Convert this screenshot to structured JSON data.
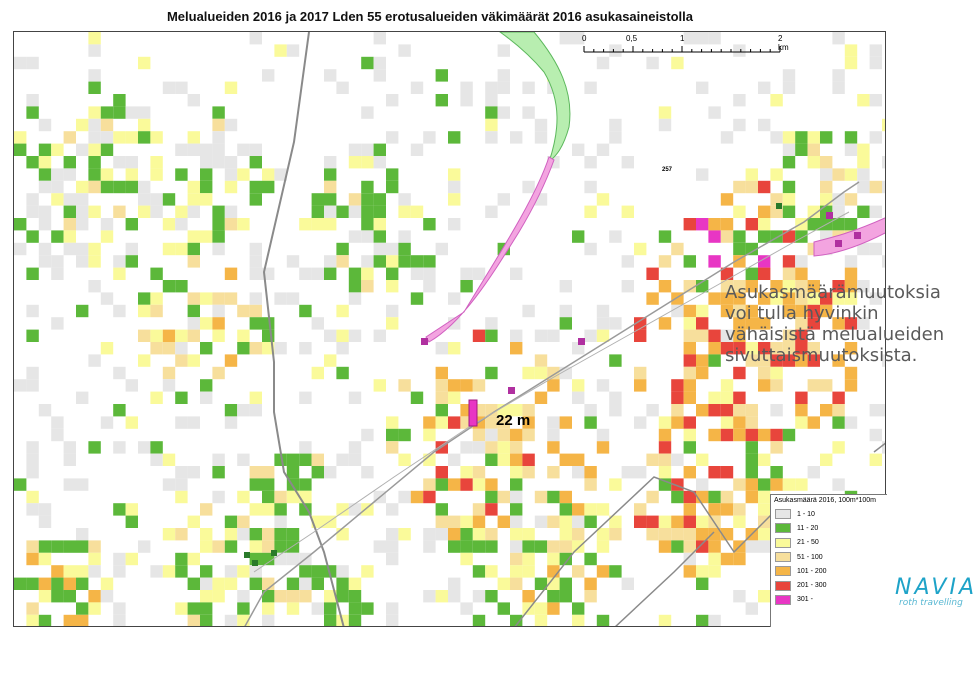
{
  "map": {
    "title": "Melualueiden 2016 ja 2017 Lden 55 erotusalueiden väkimäärät 2016 asukasaineistolla",
    "distance_label": "22 m",
    "small_label": "257"
  },
  "scalebar": {
    "ticks": [
      "0",
      "0,5",
      "1",
      "2 km"
    ]
  },
  "legend": {
    "title": "Asukasmäärä 2016, 100m*100m",
    "classes": [
      {
        "label": "1 - 10",
        "color": "#e6e6e6"
      },
      {
        "label": "11 - 20",
        "color": "#5cb83a"
      },
      {
        "label": "21 - 50",
        "color": "#fafa9a"
      },
      {
        "label": "51 - 100",
        "color": "#f7df9c"
      },
      {
        "label": "101 - 200",
        "color": "#f5b547"
      },
      {
        "label": "201 - 300",
        "color": "#e8453c"
      },
      {
        "label": "301 -",
        "color": "#e836c4"
      }
    ]
  },
  "annotation": {
    "lines": [
      "Asukasmäärämuutoksia",
      "voi tulla hyvinkin",
      "vähäisistä melualueiden",
      "sivuttaismuutoksista."
    ]
  },
  "logo": {
    "main": "NAVIA",
    "sub": "roth travelling"
  }
}
